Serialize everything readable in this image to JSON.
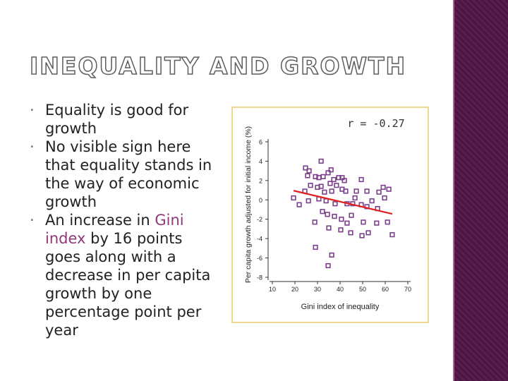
{
  "title": "INEQUALITY AND GROWTH",
  "bullets": [
    [
      "Equality is good for growth"
    ],
    [
      "No visible sign here that equality stands in the way of economic growth"
    ],
    [
      "An increase in ",
      "Gini index",
      " by 16 points goes along with a decrease in per capita growth by one percentage point per year"
    ]
  ],
  "chart_data": {
    "type": "scatter",
    "annotation": "r = -0.27",
    "x_label": "Gini index of inequality",
    "y_label": "Per capita growth adjusted for initial income (%)",
    "color": "#7b3f8c",
    "trend_color": "#e02020",
    "xlim": [
      10,
      70
    ],
    "ylim": [
      -8,
      6
    ],
    "xticks": [
      10,
      20,
      30,
      40,
      50,
      60,
      70
    ],
    "yticks": [
      6,
      4,
      2,
      0,
      -2,
      -4,
      -6,
      -8
    ],
    "x": [
      31.6,
      24.7,
      26.3,
      25.6,
      29.1,
      30.6,
      32.5,
      34.7,
      36,
      39.4,
      40.9,
      41.9,
      49.4,
      59.1,
      61.6,
      57.2,
      59.7,
      51.9,
      47.2,
      40.9,
      36.3,
      33.1,
      30,
      26.9,
      24.4,
      19.4,
      21.9,
      26,
      30.6,
      33.8,
      37.8,
      43.1,
      45.6,
      49.4,
      51.9,
      54.1,
      56.6,
      32.2,
      34.4,
      37.5,
      40.6,
      43.1,
      45,
      50.3,
      56.2,
      61,
      28.8,
      35,
      40.3,
      44.7,
      49.7,
      52.5,
      63.1,
      29.1,
      36.3,
      34.7,
      38.4,
      42.5,
      46.6,
      35.6,
      37.2,
      31.6
    ],
    "y": [
      4,
      3.3,
      3,
      2.5,
      2.4,
      2.3,
      2.4,
      2.8,
      3.1,
      2.3,
      2.3,
      2,
      2.1,
      1.3,
      1.1,
      0.8,
      0.2,
      0.9,
      0.9,
      1.1,
      0.9,
      0.8,
      1.3,
      1.5,
      0.9,
      0.2,
      -0.5,
      -0.1,
      0.1,
      -0.1,
      -0.4,
      -0.4,
      -0.4,
      -0.5,
      -0.7,
      -0.1,
      -0.9,
      -1.2,
      -1.5,
      -1.7,
      -2,
      -2.4,
      -1.6,
      -2.3,
      -2.4,
      -2.3,
      -2.3,
      -2.9,
      -3.1,
      -3.4,
      -3.7,
      -3.4,
      -3.6,
      -4.9,
      -5.7,
      -6.8,
      1.5,
      0.9,
      0.2,
      1.7,
      2.1,
      1.4
    ],
    "trend": {
      "x": [
        19.4,
        63.1
      ],
      "y": [
        0.95,
        -1.45
      ]
    }
  }
}
